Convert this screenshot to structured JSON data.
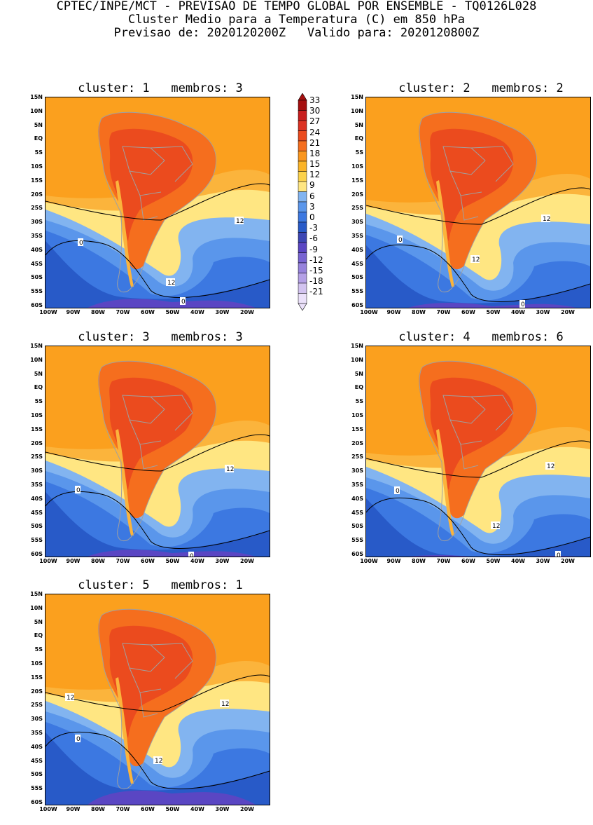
{
  "header": {
    "line1": "CPTEC/INPE/MCT - PREVISAO DE TEMPO GLOBAL POR ENSEMBLE - TQ0126L028",
    "line2": "Cluster Medio para a Temperatura (C) em 850 hPa",
    "line3": "Previsao de: 2020120200Z   Valido para: 2020120800Z"
  },
  "lat_labels": [
    "15N",
    "10N",
    "5N",
    "EQ",
    "5S",
    "10S",
    "15S",
    "20S",
    "25S",
    "30S",
    "35S",
    "40S",
    "45S",
    "50S",
    "55S",
    "60S"
  ],
  "lon_labels": [
    "100W",
    "90W",
    "80W",
    "70W",
    "60W",
    "50W",
    "40W",
    "30W",
    "20W"
  ],
  "panels": [
    {
      "title": "cluster: 1   membros: 3",
      "labels": [
        "0",
        "12",
        "12",
        "0"
      ]
    },
    {
      "title": "cluster: 2   membros: 2",
      "labels": [
        "0",
        "12",
        "12",
        "0"
      ]
    },
    {
      "title": "cluster: 3   membros: 3",
      "labels": [
        "0",
        "12",
        "0"
      ]
    },
    {
      "title": "cluster: 4   membros: 6",
      "labels": [
        "0",
        "12",
        "12",
        "0"
      ]
    },
    {
      "title": "cluster: 5   membros: 1",
      "labels": [
        "0",
        "12",
        "12",
        "12"
      ]
    }
  ],
  "colorbar": {
    "levels": [
      "33",
      "30",
      "27",
      "24",
      "21",
      "18",
      "15",
      "12",
      "9",
      "6",
      "3",
      "0",
      "-3",
      "-6",
      "-9",
      "-12",
      "-15",
      "-18",
      "-21"
    ],
    "colors": [
      "#a50f0f",
      "#c81e1e",
      "#dc3223",
      "#eb4b1e",
      "#f56e1e",
      "#fa961e",
      "#fbb428",
      "#fcd24b",
      "#ffe682",
      "#82b4f0",
      "#5a96eb",
      "#3c78e1",
      "#285ac8",
      "#3c46b4",
      "#5a46c3",
      "#7864d2",
      "#9682dc",
      "#b4a0e6",
      "#d2c3f0",
      "#ebe1fa"
    ]
  },
  "style": {
    "ocean_warm": "#fba01e",
    "ocean_mild": "#fbb43c",
    "land_hot": "#f56e1e",
    "land_core": "#eb4b1e",
    "cool": "#ffe682",
    "cold1": "#82b4f0",
    "cold2": "#5a96eb",
    "cold3": "#3c78e1",
    "cold4": "#285ac8",
    "purple": "#5a46c3",
    "border": "#a0a0a0"
  }
}
